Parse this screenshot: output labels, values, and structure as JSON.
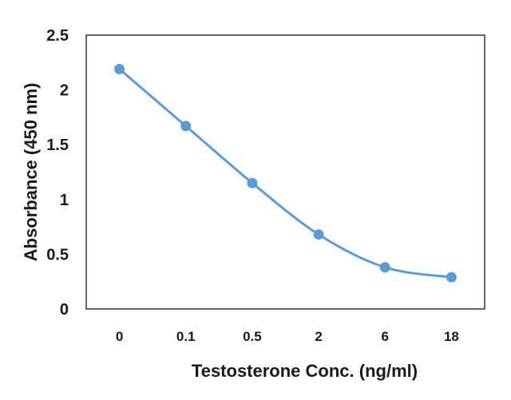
{
  "chart_data": {
    "type": "line",
    "categories": [
      "0",
      "0.1",
      "0.5",
      "2",
      "6",
      "18"
    ],
    "series": [
      {
        "values": [
          2.19,
          1.67,
          1.15,
          0.68,
          0.38,
          0.29
        ],
        "color": "#5b9bd5",
        "marker": "circle",
        "smooth": true
      }
    ],
    "xlabel": "Testosterone Conc. (ng/ml)",
    "ylabel": "Absorbance (450 nm)",
    "ylim": [
      0,
      2.5
    ],
    "yticks": [
      "0",
      "0.5",
      "1",
      "1.5",
      "2",
      "2.5"
    ],
    "grid": false,
    "legend": "none"
  }
}
